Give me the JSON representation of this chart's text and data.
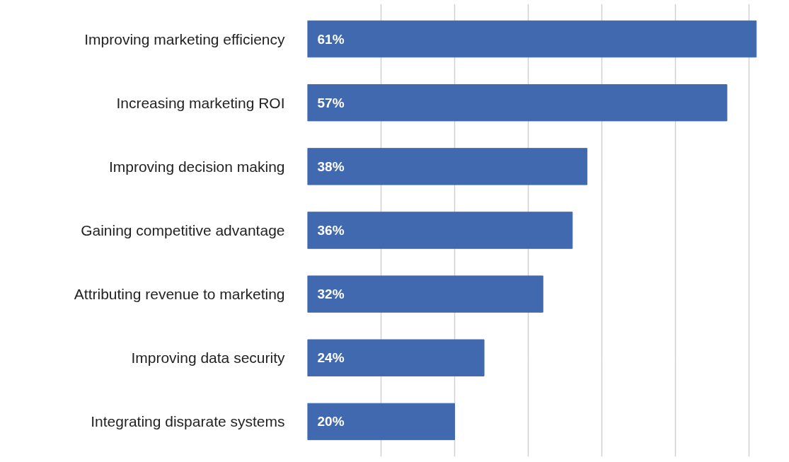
{
  "chart_data": {
    "type": "bar",
    "orientation": "horizontal",
    "categories": [
      "Improving marketing efficiency",
      "Increasing marketing ROI",
      "Improving decision making",
      "Gaining competitive advantage",
      "Attributing revenue to marketing",
      "Improving data security",
      "Integrating disparate systems"
    ],
    "values": [
      61,
      57,
      38,
      36,
      32,
      24,
      20
    ],
    "value_labels": [
      "61%",
      "57%",
      "38%",
      "36%",
      "32%",
      "24%",
      "20%"
    ],
    "color": "#4169b0",
    "tick_labels": "y",
    "grid": "x"
  }
}
